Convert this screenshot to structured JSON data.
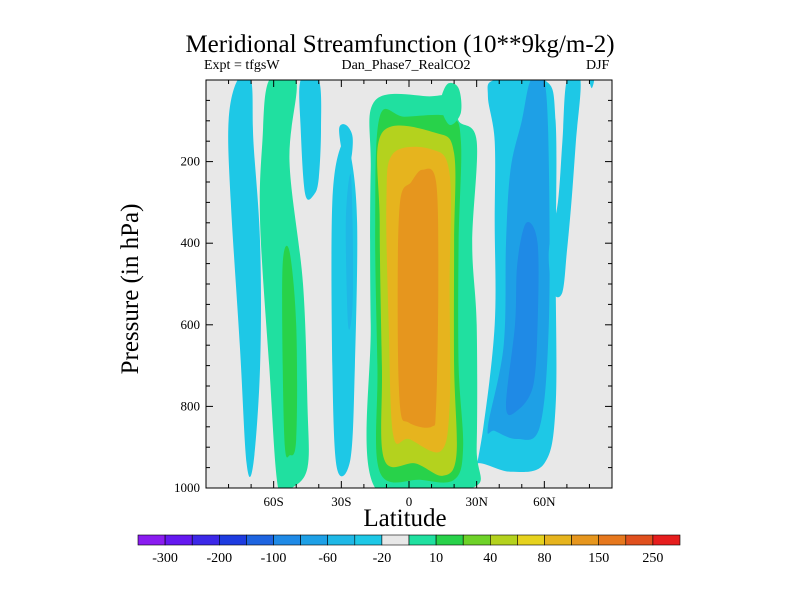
{
  "chart_data": {
    "type": "contour",
    "title": "Meridional Streamfunction (10**9kg/m-2)",
    "subtitle_left": "Expt = tfgsW",
    "subtitle_center": "Dan_Phase7_RealCO2",
    "subtitle_right": "DJF",
    "xlabel": "Latitude",
    "ylabel": "Pressure (in hPa)",
    "xlim": [
      -90,
      90
    ],
    "ylim": [
      1000,
      0
    ],
    "x_ticks": [
      {
        "value": -60,
        "label": "60S"
      },
      {
        "value": -30,
        "label": "30S"
      },
      {
        "value": 0,
        "label": "0"
      },
      {
        "value": 30,
        "label": "30N"
      },
      {
        "value": 60,
        "label": "60N"
      }
    ],
    "y_ticks": [
      {
        "value": 200,
        "label": "200"
      },
      {
        "value": 400,
        "label": "400"
      },
      {
        "value": 600,
        "label": "600"
      },
      {
        "value": 800,
        "label": "800"
      },
      {
        "value": 1000,
        "label": "1000"
      }
    ],
    "colorbar": {
      "colors": [
        "#8a1cf0",
        "#6418f0",
        "#3c28e8",
        "#1e3ce0",
        "#1e64e0",
        "#1f8ae6",
        "#1ea0e6",
        "#1fb8e6",
        "#1ec8e6",
        "#e8e8e8",
        "#20e0a0",
        "#28d24a",
        "#6ed228",
        "#b4d21e",
        "#e6d21e",
        "#e6b41e",
        "#e6961e",
        "#e6781e",
        "#e0501e",
        "#e61e1e"
      ],
      "label_text": [
        "-300",
        "-200",
        "-100",
        "-60",
        "-20",
        "10",
        "40",
        "80",
        "150",
        "250"
      ],
      "label_index": [
        1,
        3,
        5,
        7,
        9,
        11,
        13,
        15,
        17,
        19
      ]
    },
    "regions": [
      {
        "name": "nh-midlat-negative-cell",
        "level": -1,
        "color": "#1ec8e6",
        "points": [
          [
            28,
            1000
          ],
          [
            33,
            850
          ],
          [
            38,
            600
          ],
          [
            38,
            350
          ],
          [
            38,
            150
          ],
          [
            35,
            40
          ],
          [
            38,
            0
          ],
          [
            60,
            0
          ],
          [
            65,
            100
          ],
          [
            65,
            450
          ],
          [
            65,
            800
          ],
          [
            60,
            940
          ],
          [
            45,
            960
          ],
          [
            30,
            940
          ]
        ]
      },
      {
        "name": "nh-midlat-negative-inner",
        "level": -2,
        "color": "#1ea0e6",
        "points": [
          [
            35,
            850
          ],
          [
            42,
            650
          ],
          [
            43,
            400
          ],
          [
            45,
            220
          ],
          [
            50,
            100
          ],
          [
            54,
            0
          ],
          [
            60,
            0
          ],
          [
            62,
            200
          ],
          [
            62,
            600
          ],
          [
            58,
            850
          ],
          [
            48,
            880
          ],
          [
            38,
            860
          ]
        ]
      },
      {
        "name": "nh-midlat-negative-core",
        "level": -3,
        "color": "#1f8ae6",
        "points": [
          [
            43,
            800
          ],
          [
            47,
            600
          ],
          [
            48,
            450
          ],
          [
            52,
            350
          ],
          [
            57,
            400
          ],
          [
            57,
            600
          ],
          [
            55,
            750
          ],
          [
            48,
            810
          ]
        ]
      },
      {
        "name": "nh-highlat-streak",
        "level": -1,
        "color": "#1ec8e6",
        "points": [
          [
            62,
            420
          ],
          [
            66,
            300
          ],
          [
            68,
            150
          ],
          [
            70,
            0
          ],
          [
            76,
            0
          ],
          [
            74,
            150
          ],
          [
            72,
            300
          ],
          [
            70,
            420
          ],
          [
            68,
            520
          ],
          [
            64,
            520
          ]
        ]
      },
      {
        "name": "hadley-positive-10",
        "level": 1,
        "color": "#20e0a0",
        "points": [
          [
            -15,
            1000
          ],
          [
            -17,
            600
          ],
          [
            -17,
            220
          ],
          [
            -15,
            50
          ],
          [
            10,
            40
          ],
          [
            20,
            40
          ],
          [
            22,
            100
          ],
          [
            30,
            150
          ],
          [
            28,
            400
          ],
          [
            30,
            600
          ],
          [
            30,
            900
          ],
          [
            28,
            1000
          ]
        ]
      },
      {
        "name": "hadley-positive-40",
        "level": 2,
        "color": "#28d24a",
        "points": [
          [
            -13,
            960
          ],
          [
            -14,
            700
          ],
          [
            -15,
            350
          ],
          [
            -13,
            90
          ],
          [
            -2,
            90
          ],
          [
            18,
            90
          ],
          [
            23,
            150
          ],
          [
            22,
            400
          ],
          [
            22,
            700
          ],
          [
            24,
            900
          ],
          [
            20,
            980
          ],
          [
            5,
            980
          ]
        ]
      },
      {
        "name": "hadley-positive-80",
        "level": 3,
        "color": "#b4d21e",
        "points": [
          [
            -11,
            930
          ],
          [
            -12,
            700
          ],
          [
            -13,
            350
          ],
          [
            -12,
            130
          ],
          [
            12,
            130
          ],
          [
            20,
            180
          ],
          [
            20,
            400
          ],
          [
            20,
            700
          ],
          [
            21,
            920
          ],
          [
            15,
            970
          ],
          [
            3,
            940
          ]
        ]
      },
      {
        "name": "hadley-positive-100",
        "level": 4,
        "color": "#e6b41e",
        "points": [
          [
            -7,
            870
          ],
          [
            -9,
            600
          ],
          [
            -10,
            300
          ],
          [
            -7,
            180
          ],
          [
            10,
            170
          ],
          [
            18,
            230
          ],
          [
            18,
            500
          ],
          [
            18,
            800
          ],
          [
            14,
            910
          ],
          [
            0,
            880
          ]
        ]
      },
      {
        "name": "hadley-positive-150",
        "level": 5,
        "color": "#e6961e",
        "points": [
          [
            -4,
            800
          ],
          [
            -5,
            550
          ],
          [
            -4,
            300
          ],
          [
            1,
            250
          ],
          [
            6,
            220
          ],
          [
            12,
            250
          ],
          [
            13,
            500
          ],
          [
            12,
            800
          ],
          [
            10,
            850
          ],
          [
            0,
            840
          ]
        ]
      },
      {
        "name": "sh-subtropic-negative",
        "level": -1,
        "color": "#1ec8e6",
        "points": [
          [
            -32,
            950
          ],
          [
            -34,
            700
          ],
          [
            -34,
            300
          ],
          [
            -30,
            160
          ],
          [
            -26,
            180
          ],
          [
            -23,
            350
          ],
          [
            -24,
            700
          ],
          [
            -26,
            930
          ]
        ]
      },
      {
        "name": "sh-subtropic-negative-inner",
        "level": -2,
        "color": "#1fb8e6",
        "points": [
          [
            -27,
            600
          ],
          [
            -28,
            350
          ],
          [
            -26,
            230
          ],
          [
            -25,
            350
          ],
          [
            -25,
            550
          ]
        ]
      },
      {
        "name": "sh-midlat-positive-10",
        "level": 1,
        "color": "#20e0a0",
        "points": [
          [
            -58,
            1000
          ],
          [
            -62,
            700
          ],
          [
            -66,
            350
          ],
          [
            -65,
            150
          ],
          [
            -62,
            0
          ],
          [
            -50,
            0
          ],
          [
            -53,
            200
          ],
          [
            -47,
            500
          ],
          [
            -45,
            800
          ],
          [
            -45,
            950
          ],
          [
            -52,
            1000
          ]
        ]
      },
      {
        "name": "sh-midlat-positive-40",
        "level": 2,
        "color": "#28d24a",
        "points": [
          [
            -55,
            900
          ],
          [
            -56,
            700
          ],
          [
            -56,
            450
          ],
          [
            -53,
            420
          ],
          [
            -50,
            600
          ],
          [
            -50,
            880
          ],
          [
            -53,
            920
          ]
        ]
      },
      {
        "name": "sh-highlat-negative-a",
        "level": -1,
        "color": "#1ec8e6",
        "points": [
          [
            -72,
            940
          ],
          [
            -75,
            650
          ],
          [
            -79,
            300
          ],
          [
            -80,
            100
          ],
          [
            -76,
            0
          ],
          [
            -70,
            0
          ],
          [
            -69,
            150
          ],
          [
            -66,
            400
          ],
          [
            -66,
            700
          ],
          [
            -69,
            940
          ]
        ]
      },
      {
        "name": "sh-highlat-negative-b",
        "level": -1,
        "color": "#1ec8e6",
        "points": [
          [
            -46,
            280
          ],
          [
            -48,
            120
          ],
          [
            -48,
            0
          ],
          [
            -40,
            0
          ],
          [
            -39,
            120
          ],
          [
            -40,
            240
          ],
          [
            -42,
            280
          ]
        ]
      },
      {
        "name": "sh-tropic-negative-left",
        "level": -1,
        "color": "#1ec8e6",
        "points": [
          [
            -29,
            190
          ],
          [
            -31,
            120
          ],
          [
            -28,
            110
          ],
          [
            -25,
            140
          ],
          [
            -26,
            200
          ]
        ]
      },
      {
        "name": "nh-subtropic-positive-tip",
        "level": 1,
        "color": "#20e0a0",
        "points": [
          [
            14,
            60
          ],
          [
            17,
            10
          ],
          [
            22,
            20
          ],
          [
            23,
            80
          ],
          [
            18,
            110
          ]
        ]
      },
      {
        "name": "nh-polar-negative-tip",
        "level": -1,
        "color": "#1ec8e6",
        "points": [
          [
            80,
            0
          ],
          [
            82,
            0
          ],
          [
            81,
            20
          ]
        ]
      }
    ]
  }
}
